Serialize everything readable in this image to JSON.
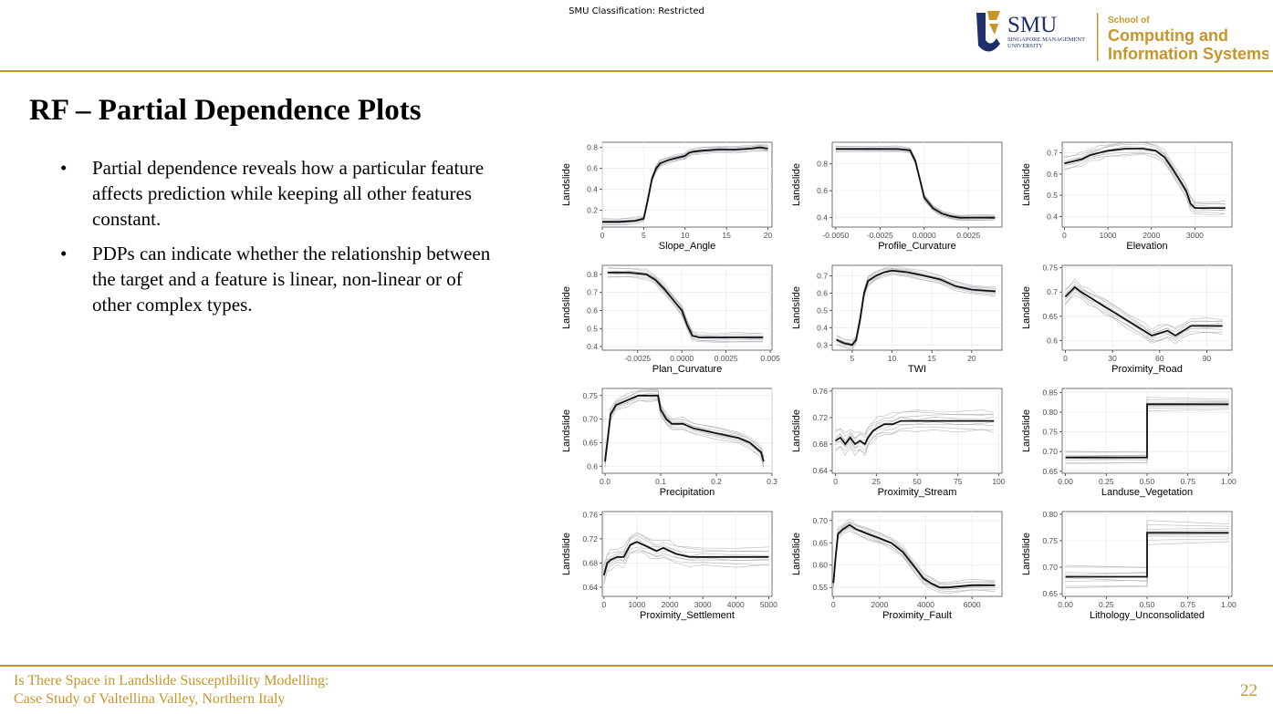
{
  "header": {
    "classification": "SMU Classification: Restricted",
    "logo": {
      "mark": "SMU",
      "university_line1": "SINGAPORE MANAGEMENT",
      "university_line2": "UNIVERSITY",
      "school_small": "School of",
      "school_line1": "Computing and",
      "school_line2": "Information Systems"
    }
  },
  "slide": {
    "title": "RF – Partial Dependence Plots",
    "bullets": [
      "Partial dependence reveals how a particular feature affects prediction while keeping all other features constant.",
      "PDPs can indicate whether the relationship between the target and a feature is linear, non-linear or of other complex types."
    ]
  },
  "footer": {
    "line1": "Is There Space in Landslide Susceptibility Modelling:",
    "line2": "Case Study of Valtellina Valley, Northern Italy",
    "page_number": "22"
  },
  "colors": {
    "accent": "#c8952a",
    "mean_line": "#111111",
    "ice_lines": "#9a9aa4"
  },
  "chart_data": [
    {
      "type": "line",
      "xlabel": "Slope_Angle",
      "ylabel": "Landslide",
      "xlim": [
        0,
        20.5
      ],
      "ylim": [
        0.04,
        0.85
      ],
      "xticks": [
        {
          "v": 0,
          "l": "0"
        },
        {
          "v": 5,
          "l": "5"
        },
        {
          "v": 10,
          "l": "10"
        },
        {
          "v": 15,
          "l": "15"
        },
        {
          "v": 20,
          "l": "20"
        }
      ],
      "yticks": [
        {
          "v": 0.2,
          "l": "0.2"
        },
        {
          "v": 0.4,
          "l": "0.4"
        },
        {
          "v": 0.6,
          "l": "0.6"
        },
        {
          "v": 0.8,
          "l": "0.8"
        }
      ],
      "x": [
        0,
        2,
        4,
        5,
        5.5,
        6,
        6.5,
        7,
        8,
        9,
        10,
        10.5,
        11,
        12,
        14,
        16,
        18,
        19,
        20
      ],
      "y": [
        0.09,
        0.09,
        0.1,
        0.12,
        0.3,
        0.5,
        0.6,
        0.65,
        0.68,
        0.7,
        0.72,
        0.75,
        0.76,
        0.77,
        0.78,
        0.78,
        0.79,
        0.8,
        0.79
      ],
      "spread": 0.03
    },
    {
      "type": "line",
      "xlabel": "Profile_Curvature",
      "ylabel": "Landslide",
      "xlim": [
        -0.0052,
        0.0044
      ],
      "ylim": [
        0.33,
        0.96
      ],
      "xticks": [
        {
          "v": -0.005,
          "l": "-0.0050"
        },
        {
          "v": -0.0025,
          "l": "-0.0025"
        },
        {
          "v": 0,
          "l": "0.0000"
        },
        {
          "v": 0.0025,
          "l": "0.0025"
        }
      ],
      "yticks": [
        {
          "v": 0.4,
          "l": "0.4"
        },
        {
          "v": 0.6,
          "l": "0.6"
        },
        {
          "v": 0.8,
          "l": "0.8"
        }
      ],
      "x": [
        -0.005,
        -0.003,
        -0.0015,
        -0.0008,
        -0.0005,
        -0.0002,
        0,
        0.0005,
        0.001,
        0.0015,
        0.002,
        0.003,
        0.004
      ],
      "y": [
        0.91,
        0.91,
        0.91,
        0.9,
        0.82,
        0.66,
        0.55,
        0.47,
        0.43,
        0.41,
        0.4,
        0.4,
        0.4
      ],
      "spread": 0.02
    },
    {
      "type": "line",
      "xlabel": "Elevation",
      "ylabel": "Landslide",
      "xlim": [
        -50,
        3850
      ],
      "ylim": [
        0.35,
        0.75
      ],
      "xticks": [
        {
          "v": 0,
          "l": "0"
        },
        {
          "v": 1000,
          "l": "1000"
        },
        {
          "v": 2000,
          "l": "2000"
        },
        {
          "v": 3000,
          "l": "3000"
        }
      ],
      "yticks": [
        {
          "v": 0.4,
          "l": "0.4"
        },
        {
          "v": 0.5,
          "l": "0.5"
        },
        {
          "v": 0.6,
          "l": "0.6"
        },
        {
          "v": 0.7,
          "l": "0.7"
        }
      ],
      "x": [
        0,
        200,
        400,
        600,
        800,
        1000,
        1400,
        1800,
        2100,
        2300,
        2500,
        2650,
        2800,
        2900,
        3000,
        3500,
        3700
      ],
      "y": [
        0.65,
        0.66,
        0.67,
        0.69,
        0.7,
        0.71,
        0.72,
        0.72,
        0.71,
        0.68,
        0.62,
        0.57,
        0.52,
        0.46,
        0.44,
        0.44,
        0.44
      ],
      "spread": 0.03
    },
    {
      "type": "line",
      "xlabel": "Plan_Curvature",
      "ylabel": "Landslide",
      "xlim": [
        -0.0045,
        0.0051
      ],
      "ylim": [
        0.38,
        0.85
      ],
      "xticks": [
        {
          "v": -0.0025,
          "l": "-0.0025"
        },
        {
          "v": 0,
          "l": "0.0000"
        },
        {
          "v": 0.0025,
          "l": "0.0025"
        },
        {
          "v": 0.005,
          "l": "0.005"
        }
      ],
      "yticks": [
        {
          "v": 0.4,
          "l": "0.4"
        },
        {
          "v": 0.5,
          "l": "0.5"
        },
        {
          "v": 0.6,
          "l": "0.6"
        },
        {
          "v": 0.7,
          "l": "0.7"
        },
        {
          "v": 0.8,
          "l": "0.8"
        }
      ],
      "x": [
        -0.0042,
        -0.003,
        -0.002,
        -0.0015,
        -0.001,
        -0.0005,
        0,
        0.0003,
        0.0006,
        0.001,
        0.002,
        0.003,
        0.0046
      ],
      "y": [
        0.81,
        0.81,
        0.8,
        0.77,
        0.72,
        0.66,
        0.6,
        0.52,
        0.46,
        0.45,
        0.45,
        0.45,
        0.45
      ],
      "spread": 0.025
    },
    {
      "type": "line",
      "xlabel": "TWI",
      "ylabel": "Landslide",
      "xlim": [
        2.5,
        23.8
      ],
      "ylim": [
        0.27,
        0.76
      ],
      "xticks": [
        {
          "v": 5,
          "l": "5"
        },
        {
          "v": 10,
          "l": "10"
        },
        {
          "v": 15,
          "l": "15"
        },
        {
          "v": 20,
          "l": "20"
        }
      ],
      "yticks": [
        {
          "v": 0.3,
          "l": "0.3"
        },
        {
          "v": 0.4,
          "l": "0.4"
        },
        {
          "v": 0.5,
          "l": "0.5"
        },
        {
          "v": 0.6,
          "l": "0.6"
        },
        {
          "v": 0.7,
          "l": "0.7"
        }
      ],
      "x": [
        3,
        4,
        5,
        5.5,
        6,
        6.5,
        7,
        8,
        9,
        10,
        12,
        14,
        16,
        18,
        20,
        23
      ],
      "y": [
        0.33,
        0.31,
        0.3,
        0.33,
        0.45,
        0.6,
        0.67,
        0.7,
        0.72,
        0.73,
        0.72,
        0.7,
        0.68,
        0.64,
        0.62,
        0.61
      ],
      "spread": 0.025
    },
    {
      "type": "line",
      "xlabel": "Proximity_Road",
      "ylabel": "Landslide",
      "xlim": [
        -2,
        106
      ],
      "ylim": [
        0.58,
        0.755
      ],
      "xticks": [
        {
          "v": 0,
          "l": "0"
        },
        {
          "v": 30,
          "l": "30"
        },
        {
          "v": 60,
          "l": "60"
        },
        {
          "v": 90,
          "l": "90"
        }
      ],
      "yticks": [
        {
          "v": 0.6,
          "l": "0.6"
        },
        {
          "v": 0.65,
          "l": "0.65"
        },
        {
          "v": 0.7,
          "l": "0.7"
        },
        {
          "v": 0.75,
          "l": "0.75"
        }
      ],
      "x": [
        0,
        3,
        6,
        10,
        15,
        20,
        25,
        30,
        40,
        50,
        55,
        60,
        65,
        70,
        75,
        80,
        90,
        100
      ],
      "y": [
        0.69,
        0.7,
        0.71,
        0.7,
        0.69,
        0.68,
        0.67,
        0.66,
        0.64,
        0.62,
        0.61,
        0.615,
        0.62,
        0.61,
        0.62,
        0.63,
        0.63,
        0.63
      ],
      "spread": 0.015
    },
    {
      "type": "line",
      "xlabel": "Precipitation",
      "ylabel": "Landslide",
      "xlim": [
        -0.005,
        0.3
      ],
      "ylim": [
        0.585,
        0.765
      ],
      "xticks": [
        {
          "v": 0,
          "l": "0.0"
        },
        {
          "v": 0.1,
          "l": "0.1"
        },
        {
          "v": 0.2,
          "l": "0.2"
        },
        {
          "v": 0.3,
          "l": "0.3"
        }
      ],
      "yticks": [
        {
          "v": 0.6,
          "l": "0.6"
        },
        {
          "v": 0.65,
          "l": "0.65"
        },
        {
          "v": 0.7,
          "l": "0.70"
        },
        {
          "v": 0.75,
          "l": "0.75"
        }
      ],
      "x": [
        0,
        0.005,
        0.01,
        0.02,
        0.04,
        0.06,
        0.08,
        0.095,
        0.1,
        0.11,
        0.12,
        0.14,
        0.16,
        0.2,
        0.24,
        0.26,
        0.28,
        0.285
      ],
      "y": [
        0.61,
        0.66,
        0.71,
        0.73,
        0.74,
        0.75,
        0.75,
        0.75,
        0.72,
        0.7,
        0.69,
        0.69,
        0.68,
        0.67,
        0.66,
        0.65,
        0.63,
        0.61
      ],
      "spread": 0.012
    },
    {
      "type": "line",
      "xlabel": "Proximity_Stream",
      "ylabel": "Landslide",
      "xlim": [
        -2,
        102
      ],
      "ylim": [
        0.636,
        0.764
      ],
      "xticks": [
        {
          "v": 0,
          "l": "0"
        },
        {
          "v": 25,
          "l": "25"
        },
        {
          "v": 50,
          "l": "50"
        },
        {
          "v": 75,
          "l": "75"
        },
        {
          "v": 100,
          "l": "100"
        }
      ],
      "yticks": [
        {
          "v": 0.64,
          "l": "0.64"
        },
        {
          "v": 0.68,
          "l": "0.68"
        },
        {
          "v": 0.72,
          "l": "0.72"
        },
        {
          "v": 0.76,
          "l": "0.76"
        }
      ],
      "x": [
        0,
        3,
        6,
        9,
        12,
        15,
        18,
        20,
        23,
        26,
        30,
        35,
        40,
        50,
        60,
        75,
        90,
        97
      ],
      "y": [
        0.685,
        0.69,
        0.68,
        0.69,
        0.68,
        0.685,
        0.68,
        0.69,
        0.7,
        0.705,
        0.71,
        0.71,
        0.715,
        0.715,
        0.715,
        0.715,
        0.715,
        0.715
      ],
      "spread": 0.015
    },
    {
      "type": "line",
      "xlabel": "Landuse_Vegetation",
      "ylabel": "Landslide",
      "xlim": [
        -0.02,
        1.02
      ],
      "ylim": [
        0.645,
        0.86
      ],
      "xticks": [
        {
          "v": 0,
          "l": "0.00"
        },
        {
          "v": 0.25,
          "l": "0.25"
        },
        {
          "v": 0.5,
          "l": "0.50"
        },
        {
          "v": 0.75,
          "l": "0.75"
        },
        {
          "v": 1,
          "l": "1.00"
        }
      ],
      "yticks": [
        {
          "v": 0.65,
          "l": "0.65"
        },
        {
          "v": 0.7,
          "l": "0.70"
        },
        {
          "v": 0.75,
          "l": "0.75"
        },
        {
          "v": 0.8,
          "l": "0.80"
        },
        {
          "v": 0.85,
          "l": "0.85"
        }
      ],
      "x": [
        0,
        0.5,
        0.5,
        1
      ],
      "y": [
        0.685,
        0.685,
        0.82,
        0.82
      ],
      "spread": 0.015
    },
    {
      "type": "line",
      "xlabel": "Proximity_Settlement",
      "ylabel": "Landslide",
      "xlim": [
        -50,
        5100
      ],
      "ylim": [
        0.625,
        0.765
      ],
      "xticks": [
        {
          "v": 0,
          "l": "0"
        },
        {
          "v": 1000,
          "l": "1000"
        },
        {
          "v": 2000,
          "l": "2000"
        },
        {
          "v": 3000,
          "l": "3000"
        },
        {
          "v": 4000,
          "l": "4000"
        },
        {
          "v": 5000,
          "l": "5000"
        }
      ],
      "yticks": [
        {
          "v": 0.64,
          "l": "0.64"
        },
        {
          "v": 0.68,
          "l": "0.68"
        },
        {
          "v": 0.72,
          "l": "0.72"
        },
        {
          "v": 0.76,
          "l": "0.76"
        }
      ],
      "x": [
        0,
        100,
        200,
        400,
        600,
        800,
        1000,
        1200,
        1400,
        1600,
        1800,
        2000,
        2200,
        2600,
        3000,
        4000,
        5000
      ],
      "y": [
        0.66,
        0.68,
        0.685,
        0.69,
        0.69,
        0.71,
        0.715,
        0.71,
        0.705,
        0.7,
        0.705,
        0.7,
        0.695,
        0.69,
        0.69,
        0.69,
        0.69
      ],
      "spread": 0.015
    },
    {
      "type": "line",
      "xlabel": "Proximity_Fault",
      "ylabel": "Landslide",
      "xlim": [
        -50,
        7300
      ],
      "ylim": [
        0.53,
        0.72
      ],
      "xticks": [
        {
          "v": 0,
          "l": "0"
        },
        {
          "v": 2000,
          "l": "2000"
        },
        {
          "v": 4000,
          "l": "4000"
        },
        {
          "v": 6000,
          "l": "6000"
        }
      ],
      "yticks": [
        {
          "v": 0.55,
          "l": "0.55"
        },
        {
          "v": 0.6,
          "l": "0.60"
        },
        {
          "v": 0.65,
          "l": "0.65"
        },
        {
          "v": 0.7,
          "l": "0.70"
        }
      ],
      "x": [
        0,
        100,
        200,
        400,
        700,
        1000,
        1500,
        2000,
        2500,
        3000,
        3300,
        3600,
        3900,
        4200,
        4600,
        5000,
        6000,
        7000
      ],
      "y": [
        0.56,
        0.62,
        0.67,
        0.68,
        0.69,
        0.68,
        0.67,
        0.66,
        0.65,
        0.63,
        0.61,
        0.59,
        0.57,
        0.56,
        0.55,
        0.55,
        0.555,
        0.555
      ],
      "spread": 0.012
    },
    {
      "type": "line",
      "xlabel": "Lithology_Unconsolidated",
      "ylabel": "Landslide",
      "xlim": [
        -0.02,
        1.02
      ],
      "ylim": [
        0.645,
        0.805
      ],
      "xticks": [
        {
          "v": 0,
          "l": "0.00"
        },
        {
          "v": 0.25,
          "l": "0.25"
        },
        {
          "v": 0.5,
          "l": "0.50"
        },
        {
          "v": 0.75,
          "l": "0.75"
        },
        {
          "v": 1,
          "l": "1.00"
        }
      ],
      "yticks": [
        {
          "v": 0.65,
          "l": "0.65"
        },
        {
          "v": 0.7,
          "l": "0.70"
        },
        {
          "v": 0.75,
          "l": "0.75"
        },
        {
          "v": 0.8,
          "l": "0.80"
        }
      ],
      "x": [
        0,
        0.5,
        0.5,
        1
      ],
      "y": [
        0.682,
        0.682,
        0.765,
        0.765
      ],
      "spread": 0.02
    }
  ]
}
